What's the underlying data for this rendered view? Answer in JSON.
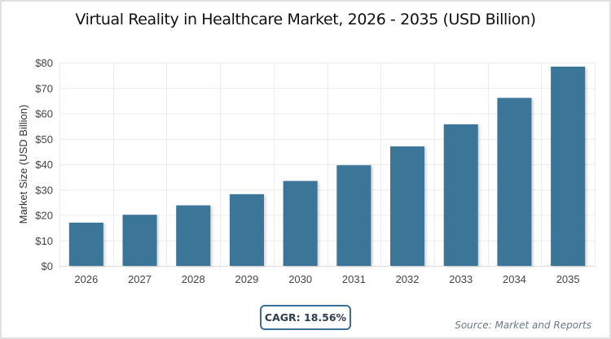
{
  "chart_data": {
    "type": "bar",
    "title": "Virtual Reality in Healthcare Market, 2026 - 2035 (USD Billion)",
    "xlabel": "",
    "ylabel": "Market Size (USD Billion)",
    "categories": [
      "2026",
      "2027",
      "2028",
      "2029",
      "2030",
      "2031",
      "2032",
      "2033",
      "2034",
      "2035"
    ],
    "values": [
      17.0,
      20.1,
      23.8,
      28.2,
      33.4,
      39.6,
      47.0,
      55.7,
      66.1,
      78.4
    ],
    "ylim": [
      0,
      80
    ],
    "yticks": [
      0,
      10,
      20,
      30,
      40,
      50,
      60,
      70,
      80
    ],
    "ytick_labels": [
      "$0",
      "$10",
      "$20",
      "$30",
      "$40",
      "$50",
      "$60",
      "$70",
      "$80"
    ],
    "grid": true,
    "bar_color": "#3b7497",
    "legend": "none"
  },
  "annotations": {
    "cagr": "CAGR: 18.56%",
    "source": "Source: Market and Reports"
  }
}
